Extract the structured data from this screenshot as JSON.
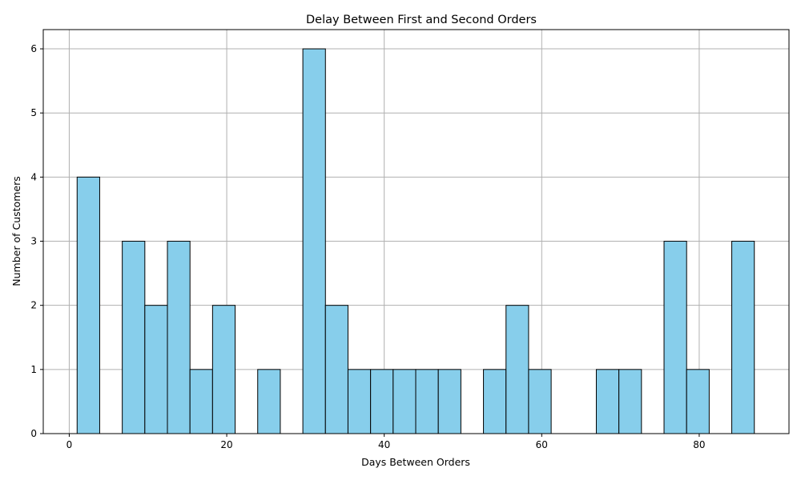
{
  "chart_data": {
    "type": "bar",
    "title": "Delay Between First and Second Orders",
    "xlabel": "Days Between Orders",
    "ylabel": "Number of Customers",
    "xlim": [
      -3.3,
      91.4
    ],
    "ylim": [
      0,
      6.3
    ],
    "xticks": [
      0,
      20,
      40,
      60,
      80
    ],
    "yticks": [
      0,
      1,
      2,
      3,
      4,
      5,
      6
    ],
    "grid": true,
    "bin_width": 2.867,
    "bins": [
      {
        "x0": 1.0,
        "count": 4
      },
      {
        "x0": 3.867,
        "count": 0
      },
      {
        "x0": 6.733,
        "count": 3
      },
      {
        "x0": 9.6,
        "count": 2
      },
      {
        "x0": 12.467,
        "count": 3
      },
      {
        "x0": 15.333,
        "count": 1
      },
      {
        "x0": 18.2,
        "count": 2
      },
      {
        "x0": 21.067,
        "count": 0
      },
      {
        "x0": 23.933,
        "count": 1
      },
      {
        "x0": 26.8,
        "count": 0
      },
      {
        "x0": 29.667,
        "count": 6
      },
      {
        "x0": 32.533,
        "count": 2
      },
      {
        "x0": 35.4,
        "count": 1
      },
      {
        "x0": 38.267,
        "count": 1
      },
      {
        "x0": 41.133,
        "count": 1
      },
      {
        "x0": 44.0,
        "count": 1
      },
      {
        "x0": 46.867,
        "count": 1
      },
      {
        "x0": 49.733,
        "count": 0
      },
      {
        "x0": 52.6,
        "count": 1
      },
      {
        "x0": 55.467,
        "count": 2
      },
      {
        "x0": 58.333,
        "count": 1
      },
      {
        "x0": 61.2,
        "count": 0
      },
      {
        "x0": 64.067,
        "count": 0
      },
      {
        "x0": 66.933,
        "count": 1
      },
      {
        "x0": 69.8,
        "count": 1
      },
      {
        "x0": 72.667,
        "count": 0
      },
      {
        "x0": 75.533,
        "count": 3
      },
      {
        "x0": 78.4,
        "count": 1
      },
      {
        "x0": 81.267,
        "count": 0
      },
      {
        "x0": 84.133,
        "count": 3
      }
    ],
    "colors": {
      "bar_fill": "#87ceeb",
      "bar_edge": "#000000",
      "grid": "#b0b0b0"
    }
  }
}
